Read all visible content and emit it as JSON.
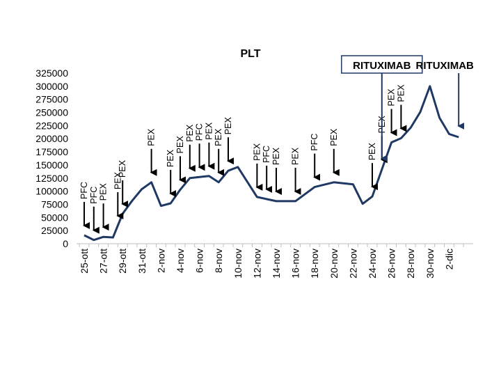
{
  "chart_data": {
    "type": "line",
    "title": "PLT",
    "xlabel": "",
    "ylabel": "",
    "ylim": [
      0,
      325000
    ],
    "yticks": [
      0,
      25000,
      50000,
      75000,
      100000,
      125000,
      150000,
      175000,
      200000,
      225000,
      250000,
      275000,
      300000,
      325000
    ],
    "grid": false,
    "legend": "none",
    "x_ticks": [
      "25-ott",
      "27-ott",
      "29-ott",
      "31-ott",
      "2-nov",
      "4-nov",
      "6-nov",
      "8-nov",
      "10-nov",
      "12-nov",
      "14-nov",
      "16-nov",
      "18-nov",
      "20-nov",
      "22-nov",
      "24-nov",
      "26-nov",
      "28-nov",
      "30-nov",
      "2-dic"
    ],
    "line_color": "#1f3864",
    "arrow_color": "#000000",
    "highlight_color": "#1f3864",
    "series": [
      {
        "values": [
          [
            0,
            16000
          ],
          [
            1,
            7000
          ],
          [
            2,
            13000
          ],
          [
            3,
            12000
          ],
          [
            4,
            57000
          ],
          [
            5,
            82000
          ],
          [
            6,
            104000
          ],
          [
            7,
            117000
          ],
          [
            8,
            72000
          ],
          [
            9,
            77000
          ],
          [
            10,
            103000
          ],
          [
            11,
            125000
          ],
          [
            12,
            127000
          ],
          [
            13,
            129000
          ],
          [
            14,
            117000
          ],
          [
            15,
            139000
          ],
          [
            16,
            146000
          ],
          [
            18,
            89000
          ],
          [
            20,
            81000
          ],
          [
            22,
            81000
          ],
          [
            24,
            108000
          ],
          [
            26,
            117000
          ],
          [
            28,
            113000
          ],
          [
            29,
            76000
          ],
          [
            30,
            90000
          ],
          [
            32,
            193000
          ],
          [
            33,
            201000
          ],
          [
            34,
            221000
          ],
          [
            35,
            251000
          ],
          [
            36,
            300000
          ],
          [
            37,
            240000
          ],
          [
            38,
            209000
          ],
          [
            39,
            203000
          ]
        ]
      }
    ],
    "annotations": [
      {
        "x": 0,
        "labels": [
          "PFC"
        ]
      },
      {
        "x": 1,
        "labels": [
          "PFC"
        ]
      },
      {
        "x": 2,
        "labels": [
          "PEX"
        ]
      },
      {
        "x": 3.5,
        "labels": [
          "PEX"
        ]
      },
      {
        "x": 4,
        "labels": [
          "PEX"
        ]
      },
      {
        "x": 7,
        "labels": [
          "PEX"
        ]
      },
      {
        "x": 9,
        "labels": [
          "PEX"
        ]
      },
      {
        "x": 10,
        "labels": [
          "PEX"
        ]
      },
      {
        "x": 11,
        "labels": [
          "PEX"
        ]
      },
      {
        "x": 12,
        "labels": [
          "PFC"
        ]
      },
      {
        "x": 13,
        "labels": [
          "PEX"
        ]
      },
      {
        "x": 14,
        "labels": [
          "PEX"
        ]
      },
      {
        "x": 15,
        "labels": [
          "PEX"
        ]
      },
      {
        "x": 18,
        "labels": [
          "PEX"
        ]
      },
      {
        "x": 19,
        "labels": [
          "PFC"
        ]
      },
      {
        "x": 20,
        "labels": [
          "PEX"
        ]
      },
      {
        "x": 22,
        "labels": [
          "PEX"
        ]
      },
      {
        "x": 24,
        "labels": [
          "PFC"
        ]
      },
      {
        "x": 26,
        "labels": [
          "PEX"
        ]
      },
      {
        "x": 30,
        "labels": [
          "PEX"
        ]
      },
      {
        "x": 31,
        "labels": [
          "PEX"
        ]
      },
      {
        "x": 32,
        "labels": [
          "PEX"
        ]
      },
      {
        "x": 33,
        "labels": [
          "PEX"
        ]
      }
    ],
    "highlights": [
      {
        "x": 31,
        "label": "RITUXIMAB",
        "boxed": true
      },
      {
        "x": 39,
        "label": "RITUXIMAB",
        "boxed": false
      }
    ]
  }
}
